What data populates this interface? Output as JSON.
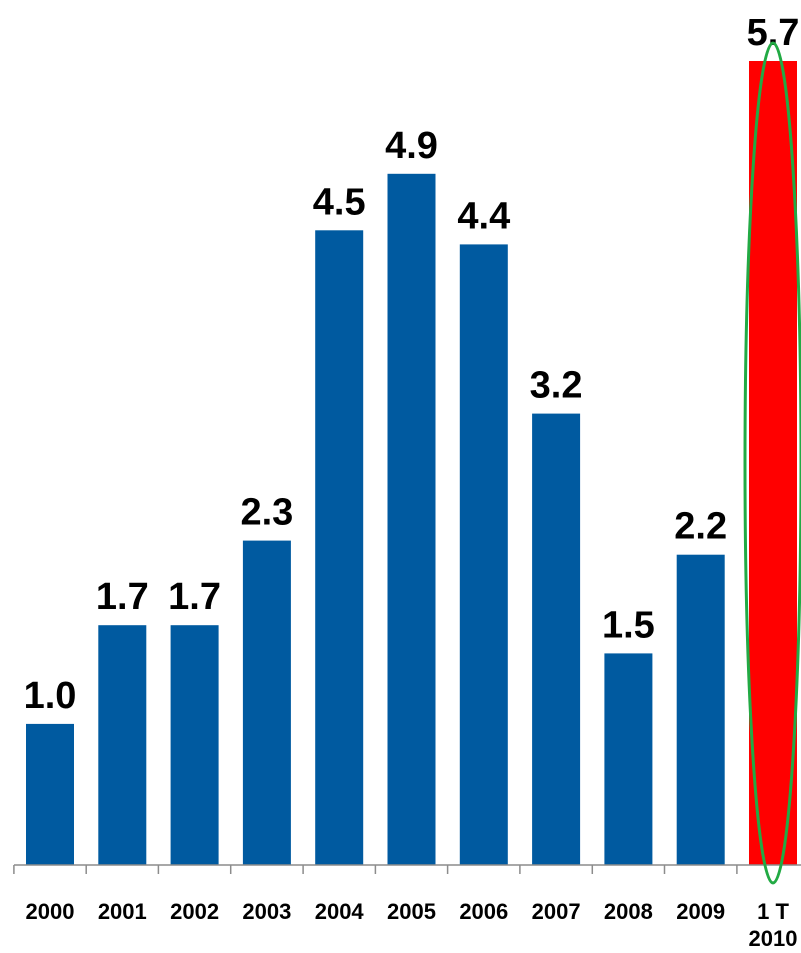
{
  "chart_data": {
    "type": "bar",
    "title": "",
    "xlabel": "",
    "ylabel": "",
    "categories": [
      "2000",
      "2001",
      "2002",
      "2003",
      "2004",
      "2005",
      "2006",
      "2007",
      "2008",
      "2009",
      "1 T 2010"
    ],
    "category_label_lines": [
      [
        "2000"
      ],
      [
        "2001"
      ],
      [
        "2002"
      ],
      [
        "2003"
      ],
      [
        "2004"
      ],
      [
        "2005"
      ],
      [
        "2006"
      ],
      [
        "2007"
      ],
      [
        "2008"
      ],
      [
        "2009"
      ],
      [
        "1 T",
        "2010"
      ]
    ],
    "values": [
      1.0,
      1.7,
      1.7,
      2.3,
      4.5,
      4.9,
      4.4,
      3.2,
      1.5,
      2.2,
      5.7
    ],
    "value_labels": [
      "1.0",
      "1.7",
      "1.7",
      "2.3",
      "4.5",
      "4.9",
      "4.4",
      "3.2",
      "1.5",
      "2.2",
      "5.7"
    ],
    "ylim": [
      0,
      5.7
    ],
    "grid": false,
    "legend": "none",
    "highlight_index": 10,
    "highlight_annotation": "ellipse",
    "colors": {
      "bar": "#005aa0",
      "highlight_bar": "#ff0000",
      "highlight_ellipse": "#22aa44",
      "axis": "#8c8c8c"
    }
  }
}
